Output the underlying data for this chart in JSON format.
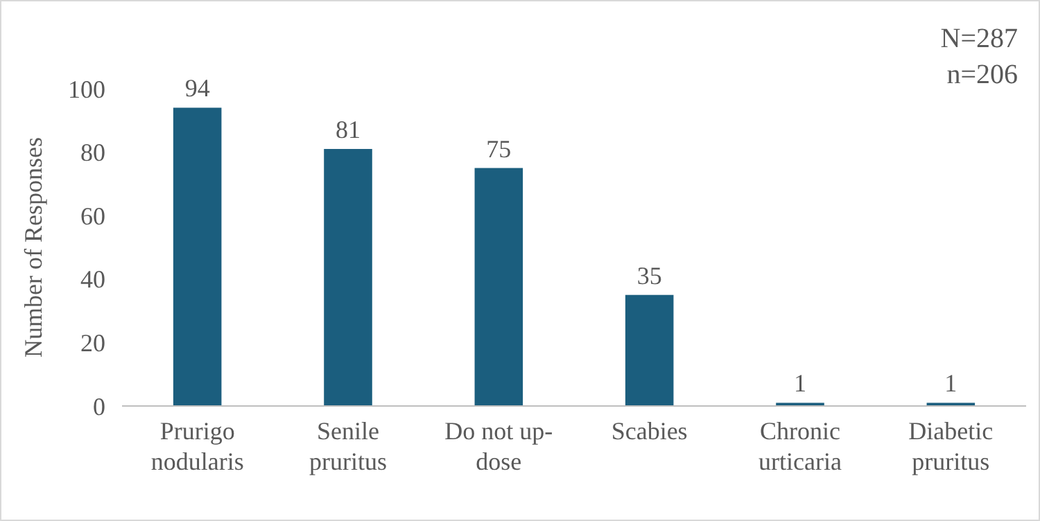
{
  "chart_data": {
    "type": "bar",
    "ylabel": "Number of Responses",
    "categories": [
      "Prurigo nodularis",
      "Senile pruritus",
      "Do not up-dose",
      "Scabies",
      "Chronic urticaria",
      "Diabetic pruritus"
    ],
    "values": [
      94,
      81,
      75,
      35,
      1,
      1
    ],
    "color": "#1b5e7e",
    "ylim": [
      0,
      100
    ],
    "yticks": [
      0,
      20,
      40,
      60,
      80,
      100
    ],
    "grid": false,
    "data_labels": true,
    "annotations": [
      "N=287",
      "n=206"
    ]
  }
}
